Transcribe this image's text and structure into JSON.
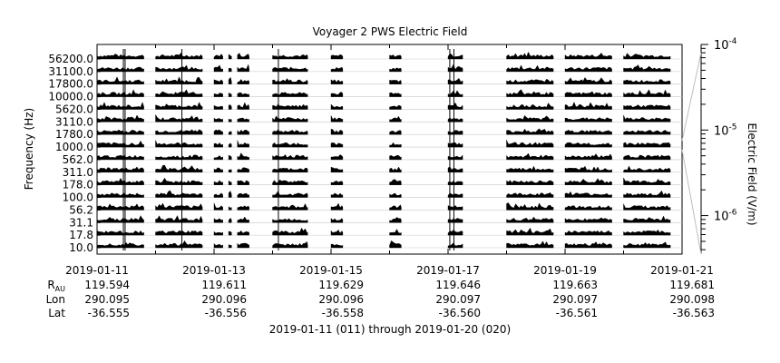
{
  "chart_data": {
    "type": "line",
    "title": "Voyager 2 PWS Electric Field",
    "ylabel": "Frequency (Hz)",
    "colorbar_label": "Electric Field (V/m)",
    "colorbar_ticks": [
      {
        "exp": "-4",
        "value": 0.0001
      },
      {
        "exp": "-5",
        "value": 1e-05
      },
      {
        "exp": "-6",
        "value": 1e-06
      }
    ],
    "channels": [
      "56200.0",
      "31100.0",
      "17800.0",
      "10000.0",
      "5620.0",
      "3110.0",
      "1780.0",
      "1000.0",
      "562.0",
      "311.0",
      "178.0",
      "100.0",
      "56.2",
      "31.1",
      "17.8",
      "10.0"
    ],
    "x_tick_labels": [
      "2019-01-11",
      "2019-01-13",
      "2019-01-15",
      "2019-01-17",
      "2019-01-19",
      "2019-01-21"
    ],
    "x_range_days": [
      0,
      10
    ],
    "data_segments_days": [
      [
        0.0,
        0.8
      ],
      [
        1.0,
        1.8
      ],
      [
        2.0,
        2.15
      ],
      [
        2.25,
        2.3
      ],
      [
        2.4,
        2.6
      ],
      [
        3.0,
        3.6
      ],
      [
        4.0,
        4.2
      ],
      [
        5.0,
        5.2
      ],
      [
        6.0,
        6.25
      ],
      [
        7.0,
        7.8
      ],
      [
        8.0,
        8.8
      ],
      [
        9.0,
        9.8
      ]
    ],
    "ephemeris": {
      "row_labels": [
        "R",
        "Lon",
        "Lat"
      ],
      "rau_subscript": "AU",
      "values": [
        [
          "119.594",
          "119.611",
          "119.629",
          "119.646",
          "119.663",
          "119.681"
        ],
        [
          "290.095",
          "290.096",
          "290.096",
          "290.097",
          "290.097",
          "290.098"
        ],
        [
          "-36.555",
          "-36.556",
          "-36.558",
          "-36.560",
          "-36.561",
          "-36.563"
        ]
      ]
    },
    "footer": "2019-01-11 (011) through 2019-01-20 (020)"
  }
}
